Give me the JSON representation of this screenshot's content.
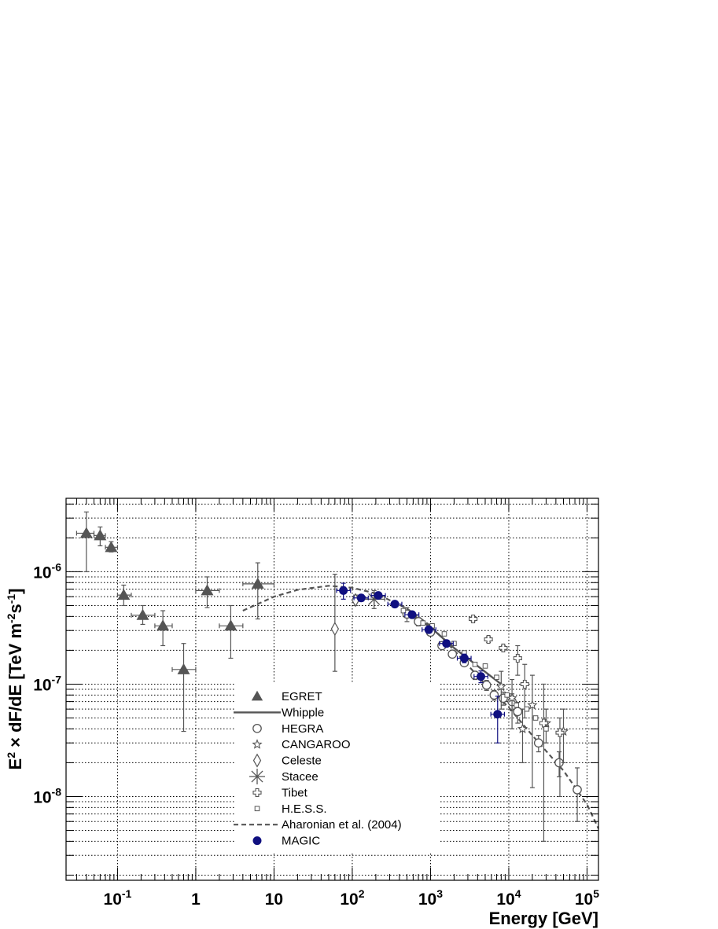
{
  "chart_data": {
    "type": "scatter",
    "xscale": "log",
    "yscale": "log",
    "xlim": [
      0.022,
      140000
    ],
    "ylim": [
      1.8e-09,
      4.5e-06
    ],
    "grid": true,
    "xlabel": "Energy [GeV]",
    "ylabel": "E2 × dF/dE [TeV m-2s-1]",
    "ylabel_parts": {
      "main": "E",
      "sup1": "2",
      "mid": " × dF/dE ",
      "bracket": "[TeV m",
      "sup2": "-2",
      "mid2": "s",
      "sup3": "-1",
      "end": "]"
    },
    "x_ticks": [
      {
        "value": 0.1,
        "base": "10",
        "exp": "-1"
      },
      {
        "value": 1,
        "text": "1"
      },
      {
        "value": 10,
        "text": "10"
      },
      {
        "value": 100,
        "base": "10",
        "exp": "2"
      },
      {
        "value": 1000,
        "base": "10",
        "exp": "3"
      },
      {
        "value": 10000,
        "base": "10",
        "exp": "4"
      },
      {
        "value": 100000,
        "base": "10",
        "exp": "5"
      }
    ],
    "y_ticks": [
      {
        "value": 1e-08,
        "base": "10",
        "exp": "-8"
      },
      {
        "value": 1e-07,
        "base": "10",
        "exp": "-7"
      },
      {
        "value": 1e-06,
        "base": "10",
        "exp": "-6"
      }
    ],
    "legend": {
      "placement": "bottom-center",
      "entries": [
        {
          "name": "EGRET",
          "marker": "triangle"
        },
        {
          "name": "Whipple",
          "marker": "solid-line"
        },
        {
          "name": "HEGRA",
          "marker": "open-circle"
        },
        {
          "name": "CANGAROO",
          "marker": "open-star"
        },
        {
          "name": "Celeste",
          "marker": "open-diamond"
        },
        {
          "name": "Stacee",
          "marker": "asterisk"
        },
        {
          "name": "Tibet",
          "marker": "open-cross"
        },
        {
          "name": "H.E.S.S.",
          "marker": "open-square"
        },
        {
          "name": "Aharonian et al. (2004)",
          "marker": "dashed-line"
        },
        {
          "name": "MAGIC",
          "marker": "filled-circle"
        }
      ]
    },
    "colors": {
      "gray": "#555555",
      "magic": "#101080",
      "grid": "#000000"
    },
    "series": [
      {
        "name": "EGRET",
        "marker": "triangle",
        "points": [
          {
            "x": 0.04,
            "y": 2.2e-06,
            "ylo": 1e-06,
            "yhi": 3.4e-06,
            "xlo": 0.03,
            "xhi": 0.05
          },
          {
            "x": 0.06,
            "y": 2.1e-06,
            "ylo": 1.7e-06,
            "yhi": 2.5e-06,
            "xlo": 0.05,
            "xhi": 0.07
          },
          {
            "x": 0.083,
            "y": 1.65e-06,
            "ylo": 1.5e-06,
            "yhi": 1.85e-06,
            "xlo": 0.07,
            "xhi": 0.1
          },
          {
            "x": 0.12,
            "y": 6.2e-07,
            "ylo": 5e-07,
            "yhi": 7.6e-07,
            "xlo": 0.1,
            "xhi": 0.15
          },
          {
            "x": 0.21,
            "y": 4.1e-07,
            "ylo": 3.4e-07,
            "yhi": 5e-07,
            "xlo": 0.15,
            "xhi": 0.3
          },
          {
            "x": 0.38,
            "y": 3.3e-07,
            "ylo": 2.2e-07,
            "yhi": 4.5e-07,
            "xlo": 0.3,
            "xhi": 0.5
          },
          {
            "x": 0.7,
            "y": 1.35e-07,
            "ylo": 3.8e-08,
            "yhi": 2.3e-07,
            "xlo": 0.5,
            "xhi": 1.0
          },
          {
            "x": 1.4,
            "y": 6.8e-07,
            "ylo": 4.8e-07,
            "yhi": 9e-07,
            "xlo": 1.0,
            "xhi": 2.0
          },
          {
            "x": 2.8,
            "y": 3.3e-07,
            "ylo": 1.7e-07,
            "yhi": 5e-07,
            "xlo": 2.0,
            "xhi": 4.0
          },
          {
            "x": 6.2,
            "y": 7.8e-07,
            "ylo": 3.8e-07,
            "yhi": 1.2e-06,
            "xlo": 4.0,
            "xhi": 10.0
          }
        ]
      },
      {
        "name": "HEGRA",
        "marker": "open-circle",
        "points": [
          {
            "x": 500,
            "y": 4.2e-07,
            "ylo": 3.6e-07,
            "yhi": 4.8e-07
          },
          {
            "x": 700,
            "y": 3.6e-07,
            "ylo": 3.3e-07,
            "yhi": 3.9e-07
          },
          {
            "x": 1000,
            "y": 2.9e-07,
            "ylo": 2.7e-07,
            "yhi": 3.1e-07
          },
          {
            "x": 1400,
            "y": 2.2e-07,
            "ylo": 2.05e-07,
            "yhi": 2.35e-07
          },
          {
            "x": 1900,
            "y": 1.85e-07,
            "ylo": 1.75e-07,
            "yhi": 1.95e-07
          },
          {
            "x": 2700,
            "y": 1.55e-07,
            "ylo": 1.45e-07,
            "yhi": 1.65e-07
          },
          {
            "x": 3700,
            "y": 1.2e-07,
            "ylo": 1.1e-07,
            "yhi": 1.3e-07
          },
          {
            "x": 5200,
            "y": 9.8e-08,
            "ylo": 8.8e-08,
            "yhi": 1.08e-07
          },
          {
            "x": 6500,
            "y": 8e-08,
            "ylo": 7.2e-08,
            "yhi": 8.8e-08
          },
          {
            "x": 8500,
            "y": 7.5e-08,
            "ylo": 6.5e-08,
            "yhi": 8.5e-08
          },
          {
            "x": 11000,
            "y": 7e-08,
            "ylo": 5.8e-08,
            "yhi": 8.2e-08
          },
          {
            "x": 13000,
            "y": 5.7e-08,
            "ylo": 4.5e-08,
            "yhi": 6.9e-08
          },
          {
            "x": 24000,
            "y": 3e-08,
            "ylo": 2.5e-08,
            "yhi": 3.5e-08
          },
          {
            "x": 44000,
            "y": 2e-08,
            "ylo": 1.5e-08,
            "yhi": 2.5e-08
          },
          {
            "x": 75000,
            "y": 1.15e-08,
            "ylo": 6e-09,
            "yhi": 1.8e-08
          }
        ]
      },
      {
        "name": "CANGAROO",
        "marker": "open-star",
        "points": [
          {
            "x": 8000,
            "y": 9.5e-08,
            "ylo": 6e-08,
            "yhi": 1.3e-07
          },
          {
            "x": 11000,
            "y": 7.5e-08,
            "ylo": 4e-08,
            "yhi": 1.1e-07
          },
          {
            "x": 15000,
            "y": 4e-08,
            "ylo": 2e-08,
            "yhi": 6e-08
          },
          {
            "x": 20000,
            "y": 6.5e-08,
            "ylo": 1.2e-08,
            "yhi": 1.2e-07
          },
          {
            "x": 30000,
            "y": 4.5e-08,
            "ylo": 3e-08,
            "yhi": 6e-08
          },
          {
            "x": 50000,
            "y": 3.8e-08,
            "ylo": 2e-08,
            "yhi": 6e-08
          }
        ]
      },
      {
        "name": "Celeste",
        "marker": "open-diamond",
        "points": [
          {
            "x": 60,
            "y": 3.1e-07,
            "ylo": 1.3e-07,
            "yhi": 9.5e-07
          },
          {
            "x": 110,
            "y": 5.6e-07,
            "ylo": 5e-07,
            "yhi": 6.2e-07
          }
        ]
      },
      {
        "name": "Stacee",
        "marker": "asterisk",
        "points": [
          {
            "x": 190,
            "y": 5.7e-07,
            "ylo": 4.7e-07,
            "yhi": 6.8e-07,
            "xlo": 140,
            "xhi": 260
          }
        ]
      },
      {
        "name": "Tibet",
        "marker": "open-cross",
        "points": [
          {
            "x": 3500,
            "y": 3.8e-07,
            "ylo": 3.6e-07,
            "yhi": 4e-07
          },
          {
            "x": 5500,
            "y": 2.5e-07,
            "ylo": 2.35e-07,
            "yhi": 2.65e-07
          },
          {
            "x": 8500,
            "y": 2.1e-07,
            "ylo": 2e-07,
            "yhi": 2.2e-07
          },
          {
            "x": 13000,
            "y": 1.7e-07,
            "ylo": 1.2e-07,
            "yhi": 2.2e-07
          },
          {
            "x": 16000,
            "y": 1e-07,
            "ylo": 5e-08,
            "yhi": 1.5e-07
          },
          {
            "x": 28000,
            "y": 4.5e-08,
            "ylo": 4e-09,
            "yhi": 1e-07
          },
          {
            "x": 45000,
            "y": 3.7e-08,
            "ylo": 1e-08,
            "yhi": 5e-08
          }
        ]
      },
      {
        "name": "H.E.S.S.",
        "marker": "open-square",
        "points": [
          {
            "x": 450,
            "y": 4.5e-07
          },
          {
            "x": 600,
            "y": 4e-07
          },
          {
            "x": 800,
            "y": 3.5e-07
          },
          {
            "x": 1050,
            "y": 3.3e-07
          },
          {
            "x": 1500,
            "y": 2.8e-07
          },
          {
            "x": 2000,
            "y": 2.3e-07
          },
          {
            "x": 2700,
            "y": 1.9e-07
          },
          {
            "x": 3700,
            "y": 1.5e-07
          },
          {
            "x": 5000,
            "y": 1.45e-07
          },
          {
            "x": 7000,
            "y": 1.15e-07
          },
          {
            "x": 9500,
            "y": 8e-08
          },
          {
            "x": 12500,
            "y": 6.5e-08
          },
          {
            "x": 17000,
            "y": 6e-08
          },
          {
            "x": 22000,
            "y": 5e-08
          },
          {
            "x": 30000,
            "y": 4e-08
          }
        ]
      },
      {
        "name": "MAGIC",
        "marker": "filled-circle",
        "points": [
          {
            "x": 77,
            "y": 6.8e-07,
            "ylo": 5.7e-07,
            "yhi": 7.9e-07,
            "xlo": 63,
            "xhi": 95
          },
          {
            "x": 130,
            "y": 5.85e-07,
            "ylo": 5.5e-07,
            "yhi": 6.2e-07,
            "xlo": 105,
            "xhi": 160
          },
          {
            "x": 215,
            "y": 6.15e-07,
            "ylo": 5.8e-07,
            "yhi": 6.5e-07,
            "xlo": 175,
            "xhi": 265
          },
          {
            "x": 350,
            "y": 5.15e-07,
            "ylo": 4.9e-07,
            "yhi": 5.4e-07,
            "xlo": 285,
            "xhi": 430
          },
          {
            "x": 580,
            "y": 4.15e-07,
            "ylo": 3.95e-07,
            "yhi": 4.35e-07,
            "xlo": 470,
            "xhi": 710
          },
          {
            "x": 950,
            "y": 3.05e-07,
            "ylo": 2.9e-07,
            "yhi": 3.2e-07,
            "xlo": 780,
            "xhi": 1170
          },
          {
            "x": 1600,
            "y": 2.3e-07,
            "ylo": 2.15e-07,
            "yhi": 2.45e-07,
            "xlo": 1300,
            "xhi": 1950
          },
          {
            "x": 2700,
            "y": 1.7e-07,
            "ylo": 1.55e-07,
            "yhi": 1.85e-07,
            "xlo": 2200,
            "xhi": 3300
          },
          {
            "x": 4400,
            "y": 1.17e-07,
            "ylo": 1.03e-07,
            "yhi": 1.31e-07,
            "xlo": 3600,
            "xhi": 5400
          },
          {
            "x": 7200,
            "y": 5.4e-08,
            "ylo": 3e-08,
            "yhi": 7.8e-08,
            "xlo": 5900,
            "xhi": 8800
          }
        ]
      }
    ],
    "lines": [
      {
        "name": "Whipple",
        "style": "solid",
        "points": [
          {
            "x": 500,
            "y": 4.4e-07
          },
          {
            "x": 1000,
            "y": 3.2e-07
          },
          {
            "x": 2000,
            "y": 2.1e-07
          },
          {
            "x": 4000,
            "y": 1.45e-07
          },
          {
            "x": 8000,
            "y": 1e-07
          }
        ]
      },
      {
        "name": "Aharonian et al. (2004)",
        "style": "dashed",
        "points": [
          {
            "x": 4,
            "y": 4.5e-07
          },
          {
            "x": 10,
            "y": 6e-07
          },
          {
            "x": 20,
            "y": 6.9e-07
          },
          {
            "x": 50,
            "y": 7.5e-07
          },
          {
            "x": 100,
            "y": 7.2e-07
          },
          {
            "x": 200,
            "y": 6.4e-07
          },
          {
            "x": 500,
            "y": 4.7e-07
          },
          {
            "x": 1000,
            "y": 3.3e-07
          },
          {
            "x": 2000,
            "y": 2e-07
          },
          {
            "x": 5000,
            "y": 1e-07
          },
          {
            "x": 10000,
            "y": 6.2e-08
          },
          {
            "x": 20000,
            "y": 3.5e-08
          },
          {
            "x": 50000,
            "y": 1.7e-08
          },
          {
            "x": 100000,
            "y": 8.5e-09
          },
          {
            "x": 140000,
            "y": 5.2e-09
          }
        ]
      }
    ]
  }
}
